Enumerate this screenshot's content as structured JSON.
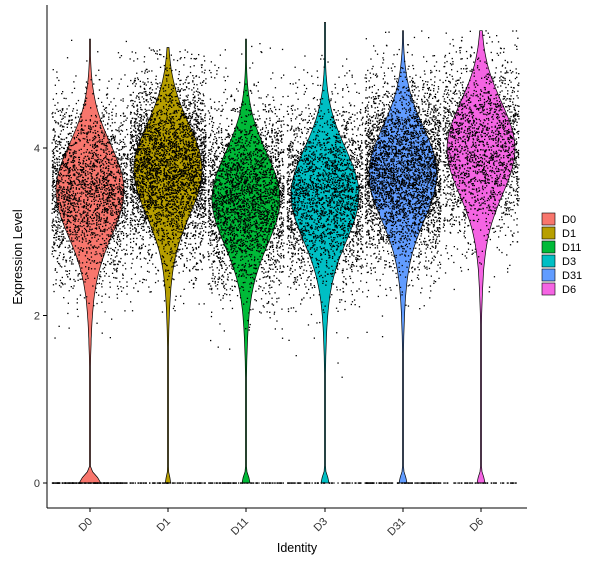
{
  "chart_data": {
    "type": "violin",
    "xlabel": "Identity",
    "ylabel": "Expression Level",
    "ylim": [
      0,
      5.5
    ],
    "yticks": [
      0,
      2,
      4
    ],
    "grid": false,
    "legend_position": "right",
    "categories": [
      "D0",
      "D1",
      "D11",
      "D3",
      "D31",
      "D6"
    ],
    "colors": [
      "#F8766D",
      "#B79F00",
      "#00BA38",
      "#00BFC4",
      "#619CFF",
      "#F564E3"
    ],
    "series": [
      {
        "name": "D0",
        "max": 5.3,
        "min": 0.0,
        "mode": 3.5,
        "zero_fraction": 0.08,
        "points": 2500
      },
      {
        "name": "D1",
        "max": 5.2,
        "min": 0.0,
        "mode": 3.75,
        "zero_fraction": 0.02,
        "points": 3800
      },
      {
        "name": "D11",
        "max": 5.3,
        "min": 0.0,
        "mode": 3.4,
        "zero_fraction": 0.03,
        "points": 3000
      },
      {
        "name": "D3",
        "max": 5.5,
        "min": 0.0,
        "mode": 3.45,
        "zero_fraction": 0.03,
        "points": 2600
      },
      {
        "name": "D31",
        "max": 5.4,
        "min": 0.0,
        "mode": 3.7,
        "zero_fraction": 0.03,
        "points": 3800
      },
      {
        "name": "D6",
        "max": 5.4,
        "min": 0.0,
        "mode": 4.0,
        "zero_fraction": 0.03,
        "points": 2000
      }
    ]
  }
}
